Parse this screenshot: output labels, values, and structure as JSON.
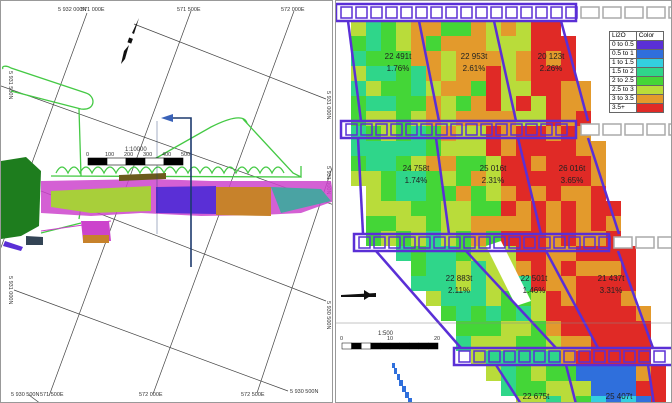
{
  "left_map": {
    "grid_labels": {
      "n_top": "5 932 000N",
      "e_571000": "571 000E",
      "e_571500_top": "571 500E",
      "e_572000_top": "572 000E",
      "n_5931500": "5 931 500N",
      "n_5931000_right": "5 931 000N",
      "n_5931000_left": "5 931 000N",
      "n_5931000_right2": "5 931 000N",
      "n_5930500_left": "5 930 500N",
      "n_5930500_right": "5 930 500N",
      "e_571500_bottom": "571 500E",
      "e_572000_bottom": "572 000E",
      "e_572500_bottom": "572 500E"
    },
    "scale_bar": {
      "ratio": "1:10000",
      "ticks": [
        "0",
        "100",
        "200",
        "300",
        "400",
        "500"
      ]
    },
    "north_arrow_icon": "north-arrow-icon",
    "section_marker_icon": "section-arrow-icon"
  },
  "right_map": {
    "blocks": [
      {
        "tonnes": "22 491t",
        "grade": "1.76%"
      },
      {
        "tonnes": "22 953t",
        "grade": "2.61%"
      },
      {
        "tonnes": "20 123t",
        "grade": "2.26%"
      },
      {
        "tonnes": "24 758t",
        "grade": "1.74%"
      },
      {
        "tonnes": "25 016t",
        "grade": "2.31%"
      },
      {
        "tonnes": "26 016t",
        "grade": "3.65%"
      },
      {
        "tonnes": "22 883t",
        "grade": "2.11%"
      },
      {
        "tonnes": "22 501t",
        "grade": "1.46%"
      },
      {
        "tonnes": "21 437t",
        "grade": "3.31%"
      },
      {
        "tonnes": "22 675t",
        "grade": ""
      },
      {
        "tonnes": "25 407t",
        "grade": ""
      }
    ],
    "scale_bar": {
      "ratio": "1:500",
      "ticks": [
        "0",
        "10",
        "20"
      ]
    },
    "legend": {
      "header_grade": "Li2O",
      "header_color": "Color",
      "items": [
        {
          "label": "0 to 0.5",
          "color": "#5a2fd6"
        },
        {
          "label": "0.5 to 1",
          "color": "#2f6fdc"
        },
        {
          "label": "1 to 1.5",
          "color": "#33cfe0"
        },
        {
          "label": "1.5 to 2",
          "color": "#2fd68a"
        },
        {
          "label": "2 to 2.5",
          "color": "#44d637"
        },
        {
          "label": "2.5 to 3",
          "color": "#b9dc3a"
        },
        {
          "label": "3 to 3.5",
          "color": "#e39a2c"
        },
        {
          "label": "3.5+",
          "color": "#e02a26"
        }
      ]
    },
    "outline_color": "#5a2fd6"
  }
}
